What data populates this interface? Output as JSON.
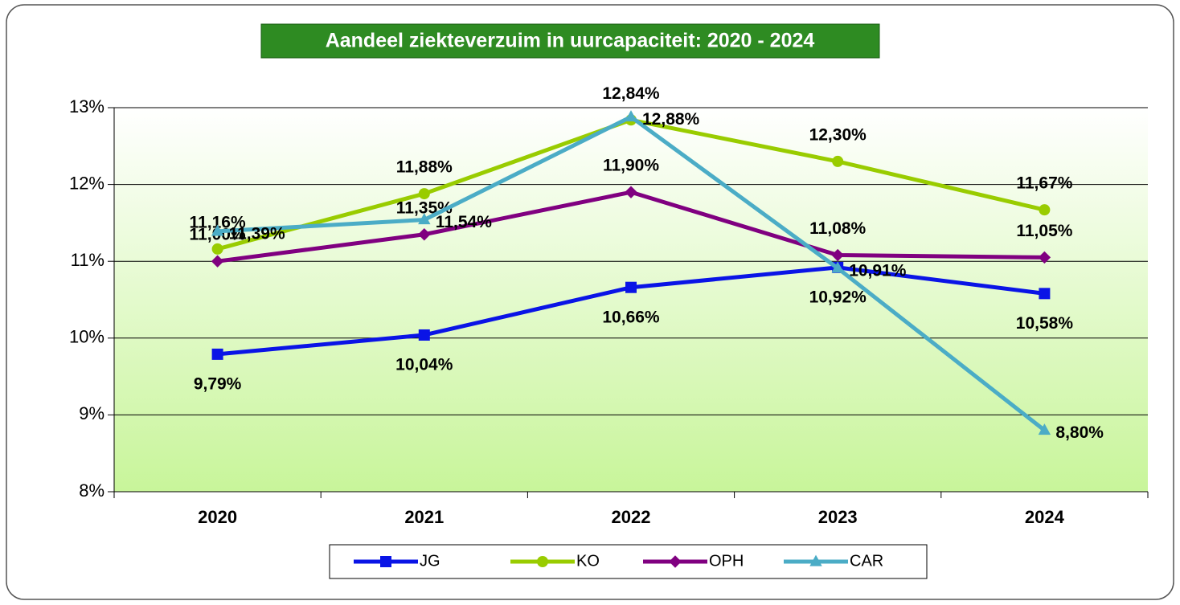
{
  "chart_data": {
    "type": "line",
    "title": "Aandeel ziekteverzuim in uurcapaciteit: 2020  - 2024",
    "categories": [
      "2020",
      "2021",
      "2022",
      "2023",
      "2024"
    ],
    "series": [
      {
        "name": "JG",
        "color": "#0a14e6",
        "marker": "square",
        "values": [
          9.79,
          10.04,
          10.66,
          10.92,
          10.58
        ],
        "value_labels": [
          "9,79%",
          "10,04%",
          "10,66%",
          "10,92%",
          "10,58%"
        ]
      },
      {
        "name": "KO",
        "color": "#99cc00",
        "marker": "circle",
        "values": [
          11.16,
          11.88,
          12.84,
          12.3,
          11.67
        ],
        "value_labels": [
          "11,16%",
          "11,88%",
          "12,84%",
          "12,30%",
          "11,67%"
        ]
      },
      {
        "name": "OPH",
        "color": "#800080",
        "marker": "diamond",
        "values": [
          11.0,
          11.35,
          11.9,
          11.08,
          11.05
        ],
        "value_labels": [
          "11,00%",
          "11,35%",
          "11,90%",
          "11,08%",
          "11,05%"
        ]
      },
      {
        "name": "CAR",
        "color": "#4bacc6",
        "marker": "triangle",
        "values": [
          11.39,
          11.54,
          12.88,
          10.91,
          8.8
        ],
        "value_labels": [
          "11,39%",
          "11,54%",
          "12,88%",
          "10,91%",
          "8,80%"
        ]
      }
    ],
    "ylim": [
      8,
      13
    ],
    "yticks": [
      {
        "value": 8,
        "label": "8%"
      },
      {
        "value": 9,
        "label": "9%"
      },
      {
        "value": 10,
        "label": "10%"
      },
      {
        "value": 11,
        "label": "11%"
      },
      {
        "value": 12,
        "label": "12%"
      },
      {
        "value": 13,
        "label": "13%"
      }
    ],
    "grid": true,
    "legend": "bottom"
  }
}
